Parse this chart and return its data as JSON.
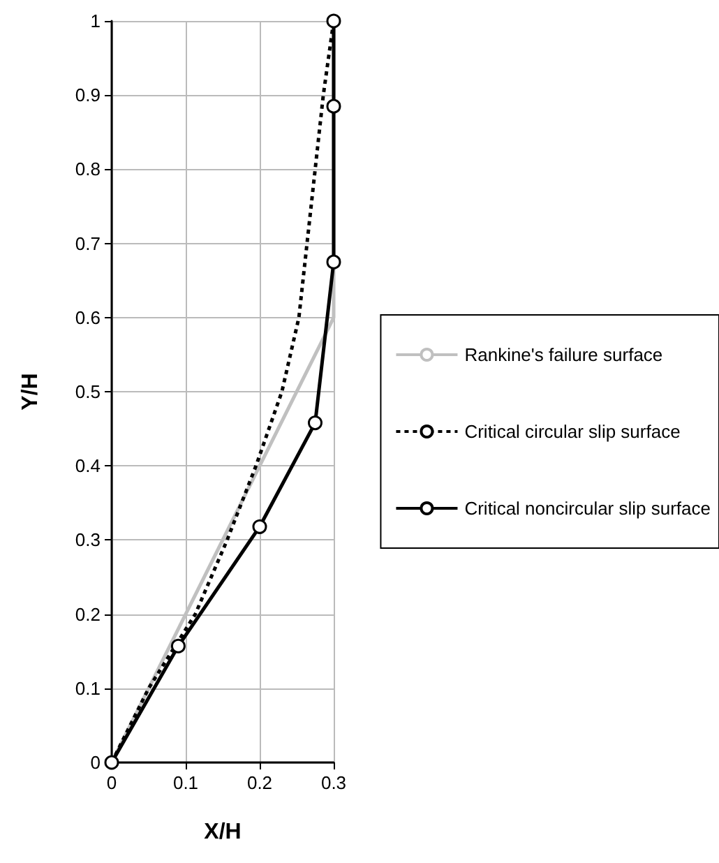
{
  "chart_data": {
    "type": "line",
    "xlabel": "X/H",
    "ylabel": "Y/H",
    "xlim": [
      0,
      0.3
    ],
    "xticks": [
      0,
      0.1,
      0.2,
      0.3
    ],
    "ylim": [
      0,
      1
    ],
    "yticks": [
      0,
      0.1,
      0.2,
      0.3,
      0.4,
      0.5,
      0.6,
      0.7,
      0.8,
      0.9,
      1
    ],
    "grid": true,
    "legend": "right",
    "series": [
      {
        "name": "Rankine's failure surface",
        "color": "#c0c0c0",
        "line_style": "solid",
        "marker": "none",
        "x": [
          0,
          0.3,
          0.3
        ],
        "values": [
          0,
          0.6,
          1
        ]
      },
      {
        "name": "Critical circular slip surface",
        "color": "#000000",
        "line_style": "dotted",
        "marker": "none",
        "x": [
          0,
          0.05,
          0.113,
          0.156,
          0.195,
          0.23,
          0.253,
          0.264,
          0.275,
          0.286,
          0.3
        ],
        "values": [
          0,
          0.1,
          0.2,
          0.3,
          0.4,
          0.5,
          0.6,
          0.7,
          0.8,
          0.9,
          1
        ]
      },
      {
        "name": "Critical noncircular slip surface",
        "color": "#000000",
        "line_style": "solid",
        "marker": "circle",
        "x": [
          0,
          0.09,
          0.2,
          0.275,
          0.3,
          0.3,
          0.3
        ],
        "values": [
          0,
          0.157,
          0.318,
          0.458,
          0.675,
          0.885,
          1
        ]
      }
    ]
  }
}
